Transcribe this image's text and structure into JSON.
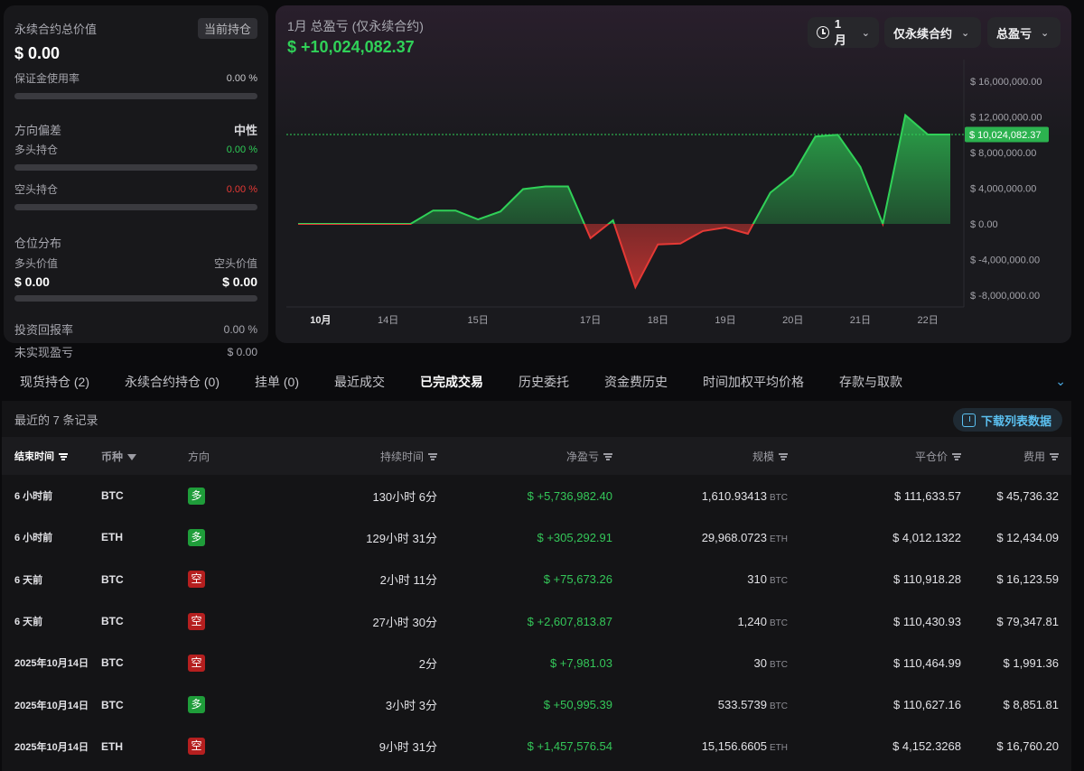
{
  "left_card": {
    "total_value_label": "永续合约总价值",
    "position_chip": "当前持仓",
    "total_value": "$ 0.00",
    "margin_usage_label": "保证金使用率",
    "margin_usage_value": "0.00 %",
    "margin_usage_fraction": 0,
    "direction_bias_label": "方向偏差",
    "direction_bias_value": "中性",
    "long_label": "多头持仓",
    "long_value": "0.00 %",
    "short_label": "空头持仓",
    "short_value": "0.00 %",
    "distribution_label": "仓位分布",
    "long_value_label": "多头价值",
    "short_value_label": "空头价值",
    "long_amount": "$ 0.00",
    "short_amount": "$ 0.00",
    "roi_label": "投资回报率",
    "roi_value": "0.00 %",
    "unrealized_label": "未实现盈亏",
    "unrealized_value": "$ 0.00"
  },
  "chart_header": {
    "title": "1月 总盈亏 (仅永续合约)",
    "total": "$ +10,024,082.37",
    "dropdown_period": "1月",
    "dropdown_scope": "仅永续合约",
    "dropdown_metric": "总盈亏"
  },
  "colors": {
    "profit": "#30d158",
    "loss": "#e53935",
    "accent": "#5bc0f0"
  },
  "chart_data": {
    "type": "area",
    "x_ticks": [
      "10月",
      "14日",
      "15日",
      "17日",
      "18日",
      "19日",
      "20日",
      "21日",
      "22日"
    ],
    "y_ticks": [
      "$ 16,000,000.00",
      "$ 12,000,000.00",
      "$ 8,000,000.00",
      "$ 4,000,000.00",
      "$ 0.00",
      "$ -4,000,000.00",
      "$ -8,000,000.00"
    ],
    "ylim": [
      -8000000,
      16000000
    ],
    "current_value_label": "$ 10,024,082.37",
    "current_value": 10024082.37,
    "values": [
      0,
      0,
      0,
      0,
      0,
      0,
      1500000,
      1500000,
      500000,
      1400000,
      3900000,
      4200000,
      4200000,
      -1600000,
      400000,
      -7100000,
      -2300000,
      -2200000,
      -800000,
      -400000,
      -1100000,
      3500000,
      5500000,
      9800000,
      10000000,
      6400000,
      0,
      12200000,
      10024082,
      10024082
    ]
  },
  "tabs": [
    "现货持仓 (2)",
    "永续合约持仓 (0)",
    "挂单 (0)",
    "最近成交",
    "已完成交易",
    "历史委托",
    "资金费历史",
    "时间加权平均价格",
    "存款与取款"
  ],
  "active_tab": 4,
  "records": {
    "count_text": "最近的 7 条记录",
    "download_label": "下载列表数据",
    "columns": [
      "结束时间",
      "币种",
      "方向",
      "持续时间",
      "净盈亏",
      "规模",
      "平仓价",
      "费用"
    ],
    "rows": [
      {
        "time": "6 小时前",
        "coin": "BTC",
        "dir": "多",
        "dir_type": "long",
        "duration": "130小时 6分",
        "pnl": "$ +5,736,982.40",
        "size": "1,610.93413",
        "unit": "BTC",
        "close": "$ 111,633.57",
        "fee": "$ 45,736.32"
      },
      {
        "time": "6 小时前",
        "coin": "ETH",
        "dir": "多",
        "dir_type": "long",
        "duration": "129小时 31分",
        "pnl": "$ +305,292.91",
        "size": "29,968.0723",
        "unit": "ETH",
        "close": "$ 4,012.1322",
        "fee": "$ 12,434.09"
      },
      {
        "time": "6 天前",
        "coin": "BTC",
        "dir": "空",
        "dir_type": "short",
        "duration": "2小时 11分",
        "pnl": "$ +75,673.26",
        "size": "310",
        "unit": "BTC",
        "close": "$ 110,918.28",
        "fee": "$ 16,123.59"
      },
      {
        "time": "6 天前",
        "coin": "BTC",
        "dir": "空",
        "dir_type": "short",
        "duration": "27小时 30分",
        "pnl": "$ +2,607,813.87",
        "size": "1,240",
        "unit": "BTC",
        "close": "$ 110,430.93",
        "fee": "$ 79,347.81"
      },
      {
        "time": "2025年10月14日",
        "coin": "BTC",
        "dir": "空",
        "dir_type": "short",
        "duration": "2分",
        "pnl": "$ +7,981.03",
        "size": "30",
        "unit": "BTC",
        "close": "$ 110,464.99",
        "fee": "$ 1,991.36"
      },
      {
        "time": "2025年10月14日",
        "coin": "BTC",
        "dir": "多",
        "dir_type": "long",
        "duration": "3小时 3分",
        "pnl": "$ +50,995.39",
        "size": "533.5739",
        "unit": "BTC",
        "close": "$ 110,627.16",
        "fee": "$ 8,851.81"
      },
      {
        "time": "2025年10月14日",
        "coin": "ETH",
        "dir": "空",
        "dir_type": "short",
        "duration": "9小时 31分",
        "pnl": "$ +1,457,576.54",
        "size": "15,156.6605",
        "unit": "ETH",
        "close": "$ 4,152.3268",
        "fee": "$ 16,760.20"
      }
    ]
  }
}
